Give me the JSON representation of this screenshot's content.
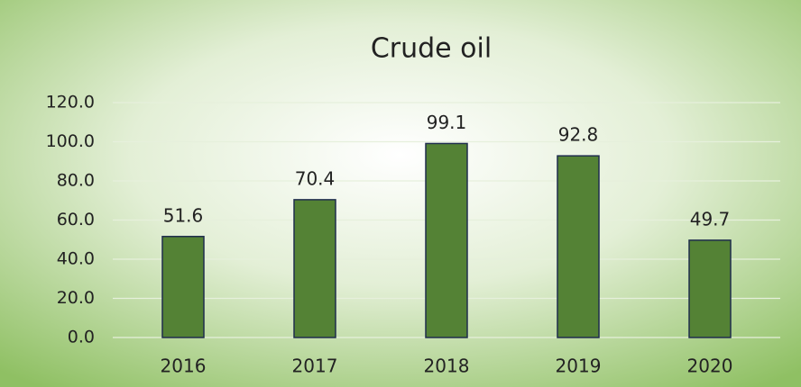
{
  "chart_data": {
    "type": "bar",
    "title": "Crude oil",
    "categories": [
      "2016",
      "2017",
      "2018",
      "2019",
      "2020"
    ],
    "values": [
      51.6,
      70.4,
      99.1,
      92.8,
      49.7
    ],
    "color": "#548235",
    "ylim": [
      0,
      120
    ],
    "yticks": [
      {
        "value": 0,
        "label": "0.0"
      },
      {
        "value": 20,
        "label": "20.0"
      },
      {
        "value": 40,
        "label": "40.0"
      },
      {
        "value": 60,
        "label": "60.0"
      },
      {
        "value": 80,
        "label": "80.0"
      },
      {
        "value": 100,
        "label": "100.0"
      },
      {
        "value": 120,
        "label": "120.0"
      }
    ],
    "grid": true
  }
}
